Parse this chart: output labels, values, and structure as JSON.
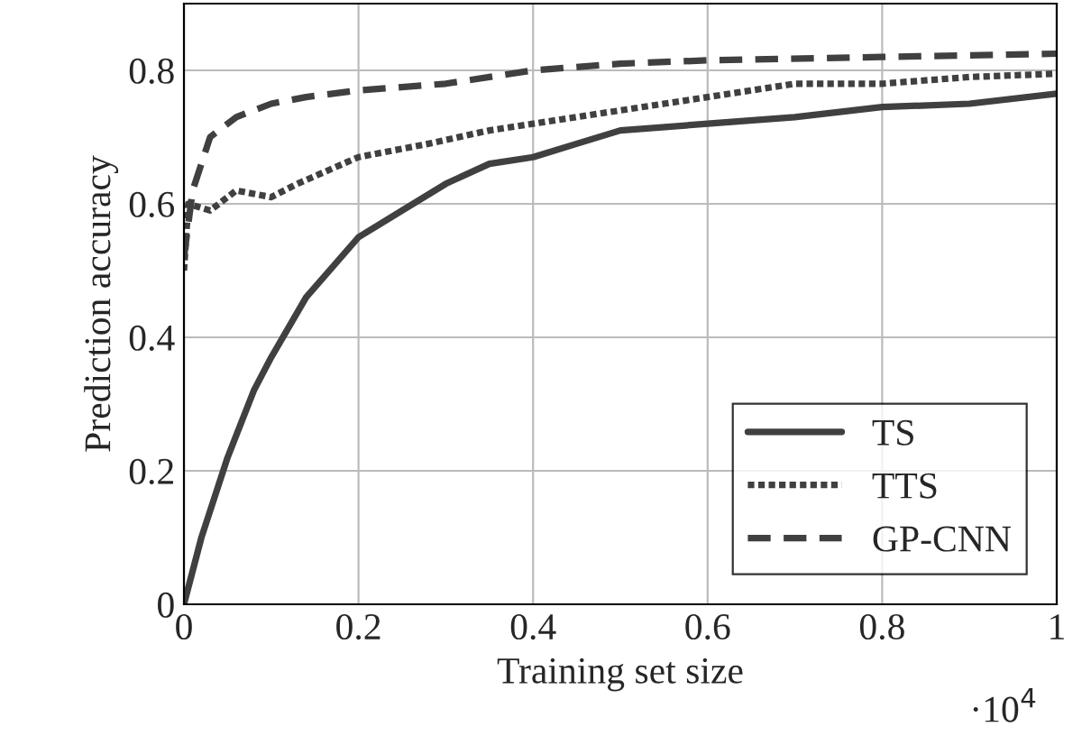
{
  "chart_data": {
    "type": "line",
    "xlabel": "Training set size",
    "ylabel": "Prediction accuracy",
    "xlim": [
      0,
      1
    ],
    "ylim": [
      0,
      0.9
    ],
    "xticks": [
      0,
      0.2,
      0.4,
      0.6,
      0.8,
      1
    ],
    "yticks": [
      0,
      0.2,
      0.4,
      0.6,
      0.8
    ],
    "grid": true,
    "legend": "bottom right",
    "annotations": [
      "·10$^{4}$"
    ],
    "series": [
      {
        "name": "TS",
        "color": "#404040",
        "line_style": "solid",
        "x": [
          0,
          0.02,
          0.05,
          0.08,
          0.1,
          0.14,
          0.2,
          0.25,
          0.3,
          0.35,
          0.4,
          0.45,
          0.5,
          0.6,
          0.7,
          0.8,
          0.9,
          1.0
        ],
        "values": [
          0,
          0.1,
          0.22,
          0.32,
          0.37,
          0.46,
          0.55,
          0.59,
          0.63,
          0.66,
          0.67,
          0.69,
          0.71,
          0.72,
          0.73,
          0.745,
          0.75,
          0.765
        ]
      },
      {
        "name": "TTS",
        "color": "#404040",
        "line_style": "dotted",
        "x": [
          0,
          0.005,
          0.03,
          0.06,
          0.1,
          0.13,
          0.2,
          0.28,
          0.35,
          0.45,
          0.5,
          0.55,
          0.6,
          0.7,
          0.8,
          0.9,
          1.0
        ],
        "values": [
          0.5,
          0.6,
          0.59,
          0.62,
          0.61,
          0.63,
          0.67,
          0.69,
          0.71,
          0.73,
          0.74,
          0.75,
          0.76,
          0.78,
          0.78,
          0.79,
          0.795
        ]
      },
      {
        "name": "GP-CNN",
        "color": "#404040",
        "line_style": "dashed",
        "x": [
          0,
          0.01,
          0.03,
          0.06,
          0.1,
          0.14,
          0.2,
          0.3,
          0.4,
          0.5,
          0.6,
          0.8,
          1.0
        ],
        "values": [
          0.52,
          0.62,
          0.7,
          0.73,
          0.75,
          0.76,
          0.77,
          0.78,
          0.8,
          0.81,
          0.815,
          0.82,
          0.825
        ]
      }
    ]
  }
}
